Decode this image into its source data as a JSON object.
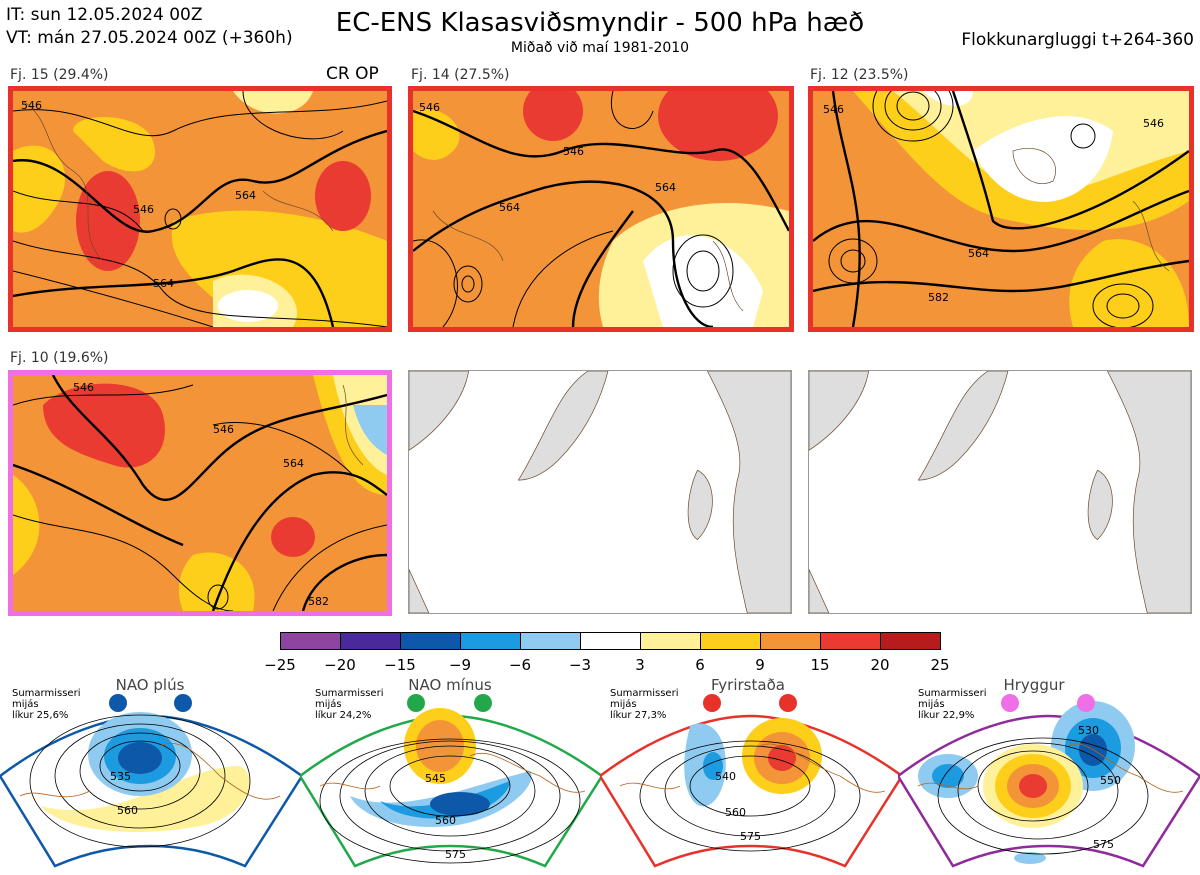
{
  "header": {
    "it_line": "IT: sun 12.05.2024 00Z",
    "vt_line": "VT: mán 27.05.2024 00Z  (+360h)",
    "title": "EC-ENS Klasasviðsmyndir - 500 hPa hæð",
    "subtitle": "Miðað við maí 1981-2010",
    "window": "Flokkunargluggi t+264-360"
  },
  "panels": [
    {
      "label": "Fj. 15 (29.4%)",
      "border": "#e8312a",
      "tag": "CR OP",
      "contours": [
        "546",
        "564",
        "564",
        "546"
      ]
    },
    {
      "label": "Fj. 14 (27.5%)",
      "border": "#e8312a",
      "contours": [
        "546",
        "564",
        "564",
        "546"
      ]
    },
    {
      "label": "Fj. 12 (23.5%)",
      "border": "#e8312a",
      "contours": [
        "546",
        "564",
        "582",
        "546"
      ]
    },
    {
      "label": "Fj. 10 (19.6%)",
      "border": "#ee6fe6",
      "contours": [
        "546",
        "546",
        "564",
        "582"
      ]
    }
  ],
  "colorbar": {
    "colors": [
      "#8e44a1",
      "#4a2a9a",
      "#0d58a8",
      "#1c9be0",
      "#8fcbf0",
      "#ffffff",
      "#fff09a",
      "#fdcf1b",
      "#f39438",
      "#ea3b32",
      "#b71c1c"
    ],
    "ticks": [
      "−25",
      "−20",
      "−15",
      "−9",
      "−6",
      "−3",
      "3",
      "6",
      "9",
      "15",
      "20",
      "25"
    ]
  },
  "regimes": [
    {
      "name": "NAO plús",
      "note": [
        "Sumarmisseri",
        "mijás",
        "líkur 25,6%"
      ],
      "color": "#0d58a8",
      "contours": [
        "535",
        "560"
      ]
    },
    {
      "name": "NAO mínus",
      "note": [
        "Sumarmisseri",
        "mijás",
        "líkur 24,2%"
      ],
      "color": "#22a84a",
      "contours": [
        "545",
        "560",
        "575"
      ]
    },
    {
      "name": "Fyrirstaða",
      "note": [
        "Sumarmisseri",
        "mijás",
        "líkur 27,3%"
      ],
      "color": "#e8312a",
      "contours": [
        "540",
        "560",
        "575"
      ]
    },
    {
      "name": "Hryggur",
      "note": [
        "Sumarmisseri",
        "mijás",
        "líkur 22,9%"
      ],
      "color": "#8e2a9a",
      "contours": [
        "530",
        "550",
        "575"
      ]
    }
  ]
}
